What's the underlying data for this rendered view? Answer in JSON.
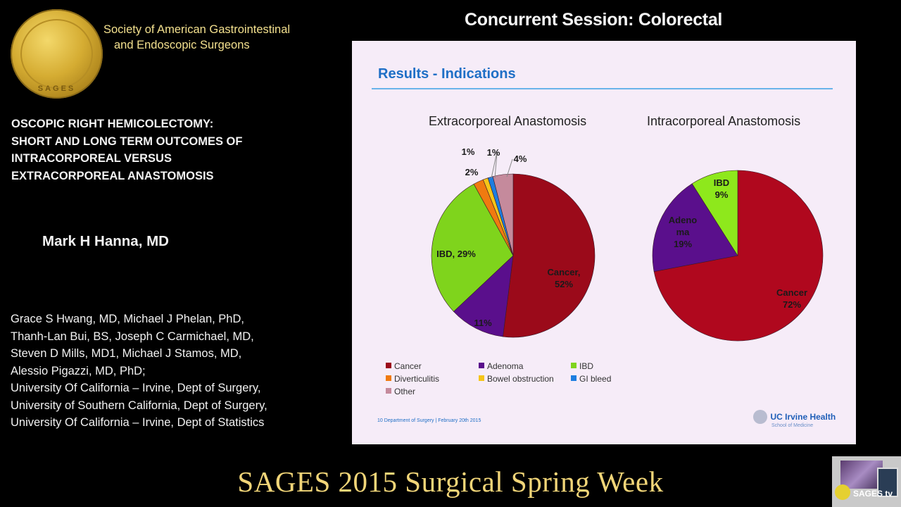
{
  "header": {
    "organization_line1": "Society of American Gastrointestinal",
    "organization_line2": "and Endoscopic Surgeons",
    "logo_text": "SAGES",
    "session_title": "Concurrent Session: Colorectal"
  },
  "presentation": {
    "title_lines": [
      "OSCOPIC RIGHT HEMICOLECTOMY:",
      "SHORT AND LONG TERM OUTCOMES OF",
      "INTRACORPOREAL VERSUS",
      "EXTRACORPOREAL ANASTOMOSIS"
    ],
    "presenter": "Mark H Hanna, MD",
    "coauthor_lines": [
      "Grace S Hwang, MD, Michael J Phelan, PhD,",
      "Thanh-Lan Bui, BS, Joseph C Carmichael, MD,",
      "Steven D Mills, MD1, Michael J Stamos, MD,",
      "Alessio Pigazzi, MD, PhD;",
      "University Of California – Irvine, Dept of Surgery,",
      "University of Southern California, Dept of Surgery,",
      "University Of California – Irvine, Dept of Statistics"
    ]
  },
  "slide": {
    "title": "Results - Indications",
    "footer_left": "10  Department of Surgery | February 20th 2015",
    "footer_logo_name": "UC Irvine Health",
    "footer_logo_sub": "School of Medicine",
    "legend": [
      {
        "label": "Cancer",
        "color": "#9b0a1a"
      },
      {
        "label": "Adenoma",
        "color": "#5a0f8c"
      },
      {
        "label": "IBD",
        "color": "#7fd41c"
      },
      {
        "label": "Diverticulitis",
        "color": "#f07a10"
      },
      {
        "label": "Bowel obstruction",
        "color": "#f5c518"
      },
      {
        "label": "GI bleed",
        "color": "#1d7ee0"
      },
      {
        "label": "Other",
        "color": "#c58a9c"
      }
    ]
  },
  "chart_data": [
    {
      "type": "pie",
      "title": "Extracorporeal Anastomosis",
      "categories": [
        "Cancer",
        "Adenoma",
        "IBD",
        "Diverticulitis",
        "Bowel obstruction",
        "GI bleed",
        "Other"
      ],
      "values": [
        52,
        11,
        29,
        2,
        1,
        1,
        4
      ],
      "labels": [
        "Cancer, 52%",
        "11%",
        "IBD, 29%",
        "2%",
        "1%",
        "1%",
        "4%"
      ],
      "colors": [
        "#9b0a1a",
        "#5a0f8c",
        "#7fd41c",
        "#f07a10",
        "#f5c518",
        "#1d7ee0",
        "#c58a9c"
      ],
      "start_angle": "12 o'clock, clockwise",
      "legend_position": "bottom"
    },
    {
      "type": "pie",
      "title": "Intracorporeal Anastomosis",
      "categories": [
        "Cancer",
        "Adenoma",
        "IBD"
      ],
      "values": [
        72,
        19,
        9
      ],
      "labels": [
        "Cancer 72%",
        "Adenoma 19%",
        "IBD 9%"
      ],
      "colors": [
        "#b0081e",
        "#5a0f8c",
        "#8ee81c"
      ],
      "start_angle": "12 o'clock, clockwise",
      "legend_position": "bottom"
    }
  ],
  "banner": {
    "text": "SAGES 2015 Surgical Spring Week",
    "thumbnail_label": "SAGES tv"
  }
}
